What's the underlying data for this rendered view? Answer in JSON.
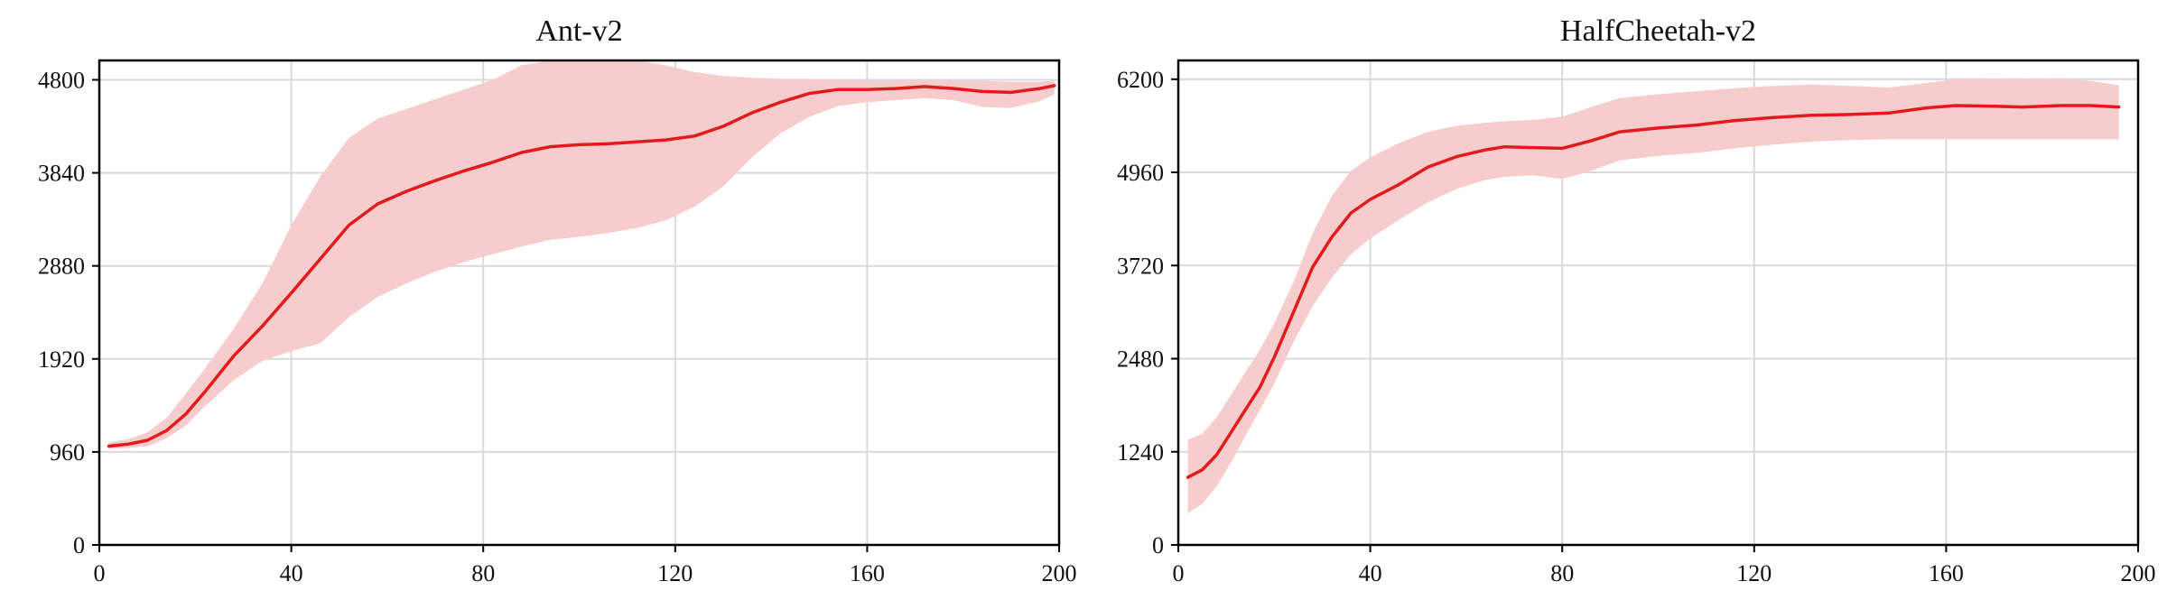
{
  "colors": {
    "series": "#e31a1c",
    "band": "#f7cccd"
  },
  "chart_data": [
    {
      "type": "line",
      "title": "Ant-v2",
      "xlabel": "",
      "ylabel": "",
      "xlim": [
        0,
        200
      ],
      "ylim": [
        0,
        5000
      ],
      "xticks": [
        0,
        40,
        80,
        120,
        160,
        200
      ],
      "yticks": [
        0,
        960,
        1920,
        2880,
        3840,
        4800
      ],
      "grid": true,
      "series": [
        {
          "x": [
            2,
            6,
            10,
            14,
            18,
            22,
            28,
            34,
            40,
            46,
            52,
            58,
            64,
            70,
            76,
            82,
            88,
            94,
            100,
            106,
            112,
            118,
            124,
            130,
            136,
            142,
            148,
            154,
            160,
            166,
            172,
            178,
            184,
            190,
            196,
            199
          ],
          "y": [
            1020,
            1040,
            1080,
            1180,
            1350,
            1580,
            1950,
            2260,
            2600,
            2950,
            3300,
            3520,
            3650,
            3760,
            3860,
            3950,
            4050,
            4110,
            4130,
            4140,
            4160,
            4180,
            4220,
            4320,
            4460,
            4570,
            4660,
            4700,
            4700,
            4710,
            4730,
            4710,
            4680,
            4670,
            4710,
            4740
          ],
          "lower": [
            990,
            1000,
            1020,
            1100,
            1230,
            1430,
            1700,
            1900,
            2000,
            2080,
            2350,
            2560,
            2700,
            2820,
            2920,
            3000,
            3080,
            3150,
            3180,
            3220,
            3270,
            3350,
            3490,
            3700,
            4000,
            4250,
            4420,
            4530,
            4570,
            4590,
            4610,
            4590,
            4520,
            4510,
            4580,
            4650
          ],
          "upper": [
            1060,
            1090,
            1160,
            1310,
            1560,
            1820,
            2230,
            2700,
            3300,
            3800,
            4200,
            4400,
            4500,
            4600,
            4700,
            4800,
            4950,
            5000,
            5000,
            5000,
            5000,
            4950,
            4880,
            4840,
            4820,
            4810,
            4810,
            4800,
            4790,
            4790,
            4800,
            4790,
            4790,
            4780,
            4780,
            4790
          ]
        }
      ]
    },
    {
      "type": "line",
      "title": "HalfCheetah-v2",
      "xlabel": "",
      "ylabel": "",
      "xlim": [
        0,
        200
      ],
      "ylim": [
        0,
        6450
      ],
      "xticks": [
        0,
        40,
        80,
        120,
        160,
        200
      ],
      "yticks": [
        0,
        1240,
        2480,
        3720,
        4960,
        6200
      ],
      "grid": true,
      "series": [
        {
          "x": [
            2,
            5,
            8,
            11,
            14,
            17,
            20,
            24,
            28,
            32,
            36,
            40,
            46,
            52,
            58,
            64,
            68,
            74,
            80,
            86,
            92,
            100,
            108,
            116,
            124,
            132,
            140,
            148,
            156,
            162,
            170,
            176,
            184,
            190,
            196
          ],
          "y": [
            900,
            1000,
            1200,
            1500,
            1800,
            2100,
            2500,
            3100,
            3700,
            4100,
            4420,
            4600,
            4800,
            5030,
            5170,
            5260,
            5300,
            5290,
            5280,
            5380,
            5500,
            5550,
            5590,
            5650,
            5690,
            5720,
            5730,
            5750,
            5820,
            5850,
            5840,
            5830,
            5850,
            5850,
            5830
          ],
          "lower": [
            420,
            550,
            780,
            1100,
            1450,
            1800,
            2150,
            2700,
            3180,
            3560,
            3870,
            4080,
            4330,
            4560,
            4740,
            4860,
            4900,
            4920,
            4870,
            4980,
            5120,
            5180,
            5220,
            5280,
            5330,
            5370,
            5390,
            5400,
            5400,
            5400,
            5400,
            5400,
            5400,
            5400,
            5400
          ],
          "upper": [
            1400,
            1480,
            1700,
            2000,
            2300,
            2600,
            2950,
            3500,
            4150,
            4650,
            4980,
            5160,
            5350,
            5500,
            5580,
            5620,
            5640,
            5660,
            5700,
            5830,
            5950,
            6000,
            6040,
            6080,
            6110,
            6130,
            6110,
            6090,
            6150,
            6200,
            6210,
            6200,
            6210,
            6180,
            6120
          ]
        }
      ]
    }
  ]
}
